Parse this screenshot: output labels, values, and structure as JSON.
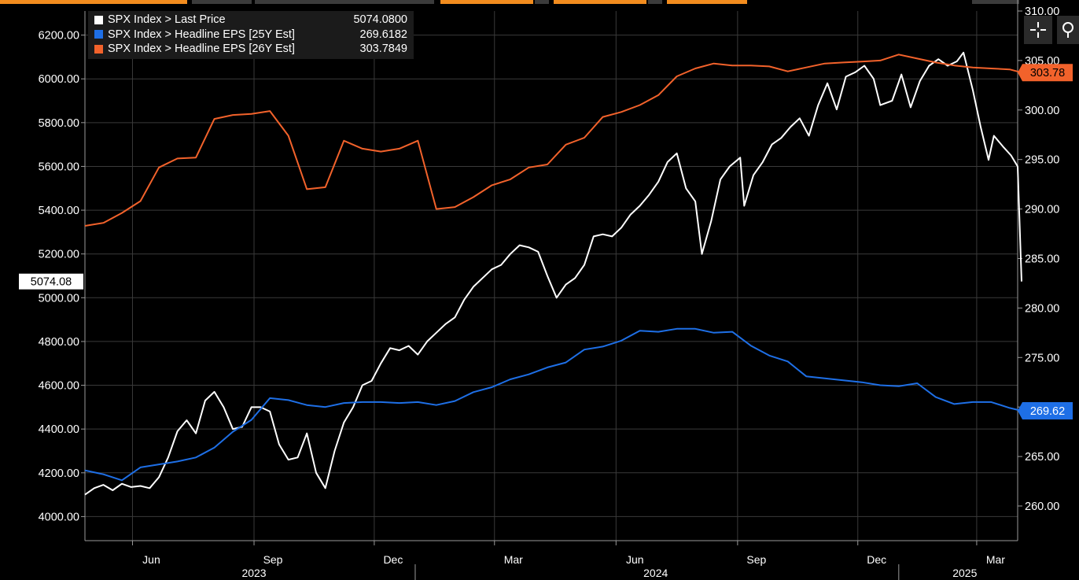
{
  "colors": {
    "background": "#000000",
    "grid": "#3a3a3a",
    "axis": "#9a9a9a",
    "price": "#ffffff",
    "eps25": "#1e6fe6",
    "eps26": "#f2622b",
    "tab_active": "#f28c1e",
    "tab_inactive": "#3b3b3b"
  },
  "toolbar": {
    "crosshair_icon": "crosshair-icon",
    "zoom_icon": "magnifier-icon"
  },
  "legend": [
    {
      "label": "SPX Index > Last Price",
      "value": "5074.0800",
      "color": "#ffffff"
    },
    {
      "label": "SPX Index > Headline EPS [25Y Est]",
      "value": "269.6182",
      "color": "#1e6fe6"
    },
    {
      "label": "SPX Index > Headline EPS [26Y Est]",
      "value": "303.7849",
      "color": "#f2622b"
    }
  ],
  "chart_data": {
    "type": "line",
    "x_axis": {
      "month_ticks": [
        {
          "date": "2023-06-01",
          "label": "Jun"
        },
        {
          "date": "2023-09-01",
          "label": "Sep"
        },
        {
          "date": "2023-12-01",
          "label": "Dec"
        },
        {
          "date": "2024-03-01",
          "label": "Mar"
        },
        {
          "date": "2024-06-01",
          "label": "Jun"
        },
        {
          "date": "2024-09-01",
          "label": "Sep"
        },
        {
          "date": "2024-12-01",
          "label": "Dec"
        },
        {
          "date": "2025-03-01",
          "label": "Mar"
        }
      ],
      "year_labels": [
        {
          "date": "2023-09-01",
          "label": "2023"
        },
        {
          "date": "2024-07-01",
          "label": "2024"
        },
        {
          "date": "2025-02-20",
          "label": "2025"
        }
      ],
      "year_dividers": [
        "2024-01-01",
        "2025-01-01"
      ],
      "range": [
        "2023-04-26",
        "2025-04-01"
      ]
    },
    "left_axis": {
      "range": [
        3890,
        6310
      ],
      "ticks": [
        "4000.00",
        "4200.00",
        "4400.00",
        "4600.00",
        "4800.00",
        "5000.00",
        "5200.00",
        "5400.00",
        "5600.00",
        "5800.00",
        "6000.00",
        "6200.00"
      ],
      "last_value_label": "5074.08"
    },
    "right_axis": {
      "range": [
        256.5,
        310
      ],
      "ticks": [
        "260.00",
        "265.00",
        "270.00",
        "275.00",
        "280.00",
        "285.00",
        "290.00",
        "295.00",
        "300.00",
        "305.00",
        "310.00"
      ],
      "last_value_labels": [
        {
          "series": "SPX Index > Headline EPS [26Y Est]",
          "label": "303.78",
          "value": 303.78
        },
        {
          "series": "SPX Index > Headline EPS [25Y Est]",
          "label": "269.62",
          "value": 269.62
        }
      ]
    },
    "series": [
      {
        "name": "SPX Index > Last Price",
        "axis": "left",
        "x": [
          "2023-04-26",
          "2023-05-03",
          "2023-05-10",
          "2023-05-17",
          "2023-05-24",
          "2023-05-31",
          "2023-06-07",
          "2023-06-14",
          "2023-06-21",
          "2023-06-28",
          "2023-07-05",
          "2023-07-12",
          "2023-07-19",
          "2023-07-26",
          "2023-08-02",
          "2023-08-09",
          "2023-08-16",
          "2023-08-23",
          "2023-08-30",
          "2023-09-06",
          "2023-09-13",
          "2023-09-20",
          "2023-09-27",
          "2023-10-04",
          "2023-10-11",
          "2023-10-18",
          "2023-10-25",
          "2023-11-01",
          "2023-11-08",
          "2023-11-15",
          "2023-11-22",
          "2023-11-29",
          "2023-12-06",
          "2023-12-13",
          "2023-12-20",
          "2023-12-27",
          "2024-01-03",
          "2024-01-10",
          "2024-01-17",
          "2024-01-24",
          "2024-01-31",
          "2024-02-07",
          "2024-02-14",
          "2024-02-21",
          "2024-02-28",
          "2024-03-06",
          "2024-03-13",
          "2024-03-20",
          "2024-03-27",
          "2024-04-03",
          "2024-04-10",
          "2024-04-17",
          "2024-04-24",
          "2024-05-01",
          "2024-05-08",
          "2024-05-15",
          "2024-05-22",
          "2024-05-29",
          "2024-06-05",
          "2024-06-12",
          "2024-06-19",
          "2024-06-26",
          "2024-07-03",
          "2024-07-10",
          "2024-07-17",
          "2024-07-24",
          "2024-07-31",
          "2024-08-05",
          "2024-08-12",
          "2024-08-19",
          "2024-08-26",
          "2024-09-03",
          "2024-09-06",
          "2024-09-13",
          "2024-09-20",
          "2024-09-27",
          "2024-10-04",
          "2024-10-11",
          "2024-10-18",
          "2024-10-25",
          "2024-11-01",
          "2024-11-08",
          "2024-11-15",
          "2024-11-22",
          "2024-11-29",
          "2024-12-06",
          "2024-12-13",
          "2024-12-18",
          "2024-12-27",
          "2025-01-03",
          "2025-01-10",
          "2025-01-17",
          "2025-01-24",
          "2025-01-31",
          "2025-02-07",
          "2025-02-14",
          "2025-02-19",
          "2025-02-26",
          "2025-03-04",
          "2025-03-10",
          "2025-03-14",
          "2025-03-21",
          "2025-03-27",
          "2025-04-01",
          "2025-04-04"
        ],
        "values": [
          4100,
          4130,
          4145,
          4120,
          4150,
          4135,
          4140,
          4130,
          4180,
          4270,
          4390,
          4440,
          4380,
          4530,
          4570,
          4500,
          4400,
          4410,
          4500,
          4500,
          4480,
          4330,
          4260,
          4270,
          4380,
          4200,
          4130,
          4300,
          4430,
          4500,
          4600,
          4620,
          4700,
          4770,
          4760,
          4780,
          4740,
          4800,
          4840,
          4880,
          4910,
          4990,
          5050,
          5090,
          5130,
          5150,
          5200,
          5240,
          5230,
          5210,
          5100,
          5000,
          5060,
          5090,
          5150,
          5280,
          5290,
          5280,
          5320,
          5380,
          5420,
          5470,
          5530,
          5620,
          5660,
          5500,
          5440,
          5200,
          5350,
          5540,
          5600,
          5640,
          5420,
          5560,
          5620,
          5700,
          5730,
          5780,
          5820,
          5740,
          5880,
          5980,
          5860,
          6010,
          6030,
          6060,
          6000,
          5880,
          5900,
          6020,
          5870,
          5990,
          6060,
          6090,
          6060,
          6080,
          6120,
          5950,
          5780,
          5630,
          5740,
          5690,
          5650,
          5600,
          5074.08
        ]
      },
      {
        "name": "SPX Index > Headline EPS [25Y Est]",
        "axis": "right",
        "x": [
          "2023-04-26",
          "2023-05-10",
          "2023-05-24",
          "2023-06-07",
          "2023-06-21",
          "2023-07-05",
          "2023-07-19",
          "2023-08-02",
          "2023-08-16",
          "2023-08-30",
          "2023-09-13",
          "2023-09-27",
          "2023-10-11",
          "2023-10-25",
          "2023-11-08",
          "2023-11-22",
          "2023-12-06",
          "2023-12-20",
          "2024-01-03",
          "2024-01-17",
          "2024-01-31",
          "2024-02-14",
          "2024-02-28",
          "2024-03-13",
          "2024-03-27",
          "2024-04-10",
          "2024-04-24",
          "2024-05-08",
          "2024-05-22",
          "2024-06-05",
          "2024-06-19",
          "2024-07-03",
          "2024-07-17",
          "2024-07-31",
          "2024-08-14",
          "2024-08-28",
          "2024-09-11",
          "2024-09-25",
          "2024-10-09",
          "2024-10-23",
          "2024-11-06",
          "2024-11-20",
          "2024-12-04",
          "2024-12-18",
          "2025-01-01",
          "2025-01-15",
          "2025-01-29",
          "2025-02-12",
          "2025-02-26",
          "2025-03-12",
          "2025-03-26",
          "2025-04-04"
        ],
        "values": [
          263.6,
          263.2,
          262.6,
          263.9,
          264.2,
          264.5,
          264.9,
          265.9,
          267.5,
          268.7,
          270.9,
          270.7,
          270.2,
          270.0,
          270.4,
          270.5,
          270.5,
          270.4,
          270.5,
          270.2,
          270.6,
          271.5,
          272.0,
          272.8,
          273.3,
          274.0,
          274.5,
          275.8,
          276.1,
          276.7,
          277.7,
          277.6,
          277.9,
          277.9,
          277.5,
          277.6,
          276.2,
          275.2,
          274.6,
          273.1,
          272.9,
          272.7,
          272.5,
          272.2,
          272.1,
          272.4,
          271.0,
          270.3,
          270.5,
          270.5,
          269.9,
          269.62
        ]
      },
      {
        "name": "SPX Index > Headline EPS [26Y Est]",
        "axis": "right",
        "x": [
          "2023-04-26",
          "2023-05-10",
          "2023-05-24",
          "2023-06-07",
          "2023-06-21",
          "2023-07-05",
          "2023-07-19",
          "2023-08-02",
          "2023-08-16",
          "2023-08-30",
          "2023-09-13",
          "2023-09-27",
          "2023-10-11",
          "2023-10-25",
          "2023-11-08",
          "2023-11-22",
          "2023-12-06",
          "2023-12-20",
          "2024-01-03",
          "2024-01-17",
          "2024-01-31",
          "2024-02-14",
          "2024-02-28",
          "2024-03-13",
          "2024-03-27",
          "2024-04-10",
          "2024-04-24",
          "2024-05-08",
          "2024-05-22",
          "2024-06-05",
          "2024-06-19",
          "2024-07-03",
          "2024-07-17",
          "2024-07-31",
          "2024-08-14",
          "2024-08-28",
          "2024-09-11",
          "2024-09-25",
          "2024-10-09",
          "2024-10-23",
          "2024-11-06",
          "2024-11-20",
          "2024-12-04",
          "2024-12-18",
          "2025-01-01",
          "2025-01-15",
          "2025-01-29",
          "2025-02-12",
          "2025-02-26",
          "2025-03-12",
          "2025-03-26",
          "2025-04-04"
        ],
        "values": [
          288.3,
          288.6,
          289.6,
          290.8,
          294.2,
          295.1,
          295.2,
          299.1,
          299.5,
          299.6,
          299.9,
          297.4,
          292.0,
          292.2,
          296.9,
          296.1,
          295.8,
          296.1,
          296.9,
          290.0,
          290.2,
          291.2,
          292.4,
          293.0,
          294.2,
          294.5,
          296.5,
          297.2,
          299.3,
          299.8,
          300.5,
          301.5,
          303.4,
          304.2,
          304.7,
          304.5,
          304.5,
          304.4,
          303.9,
          304.3,
          304.7,
          304.8,
          304.9,
          305.0,
          305.6,
          305.2,
          304.8,
          304.5,
          304.3,
          304.2,
          304.1,
          303.78
        ]
      }
    ]
  }
}
